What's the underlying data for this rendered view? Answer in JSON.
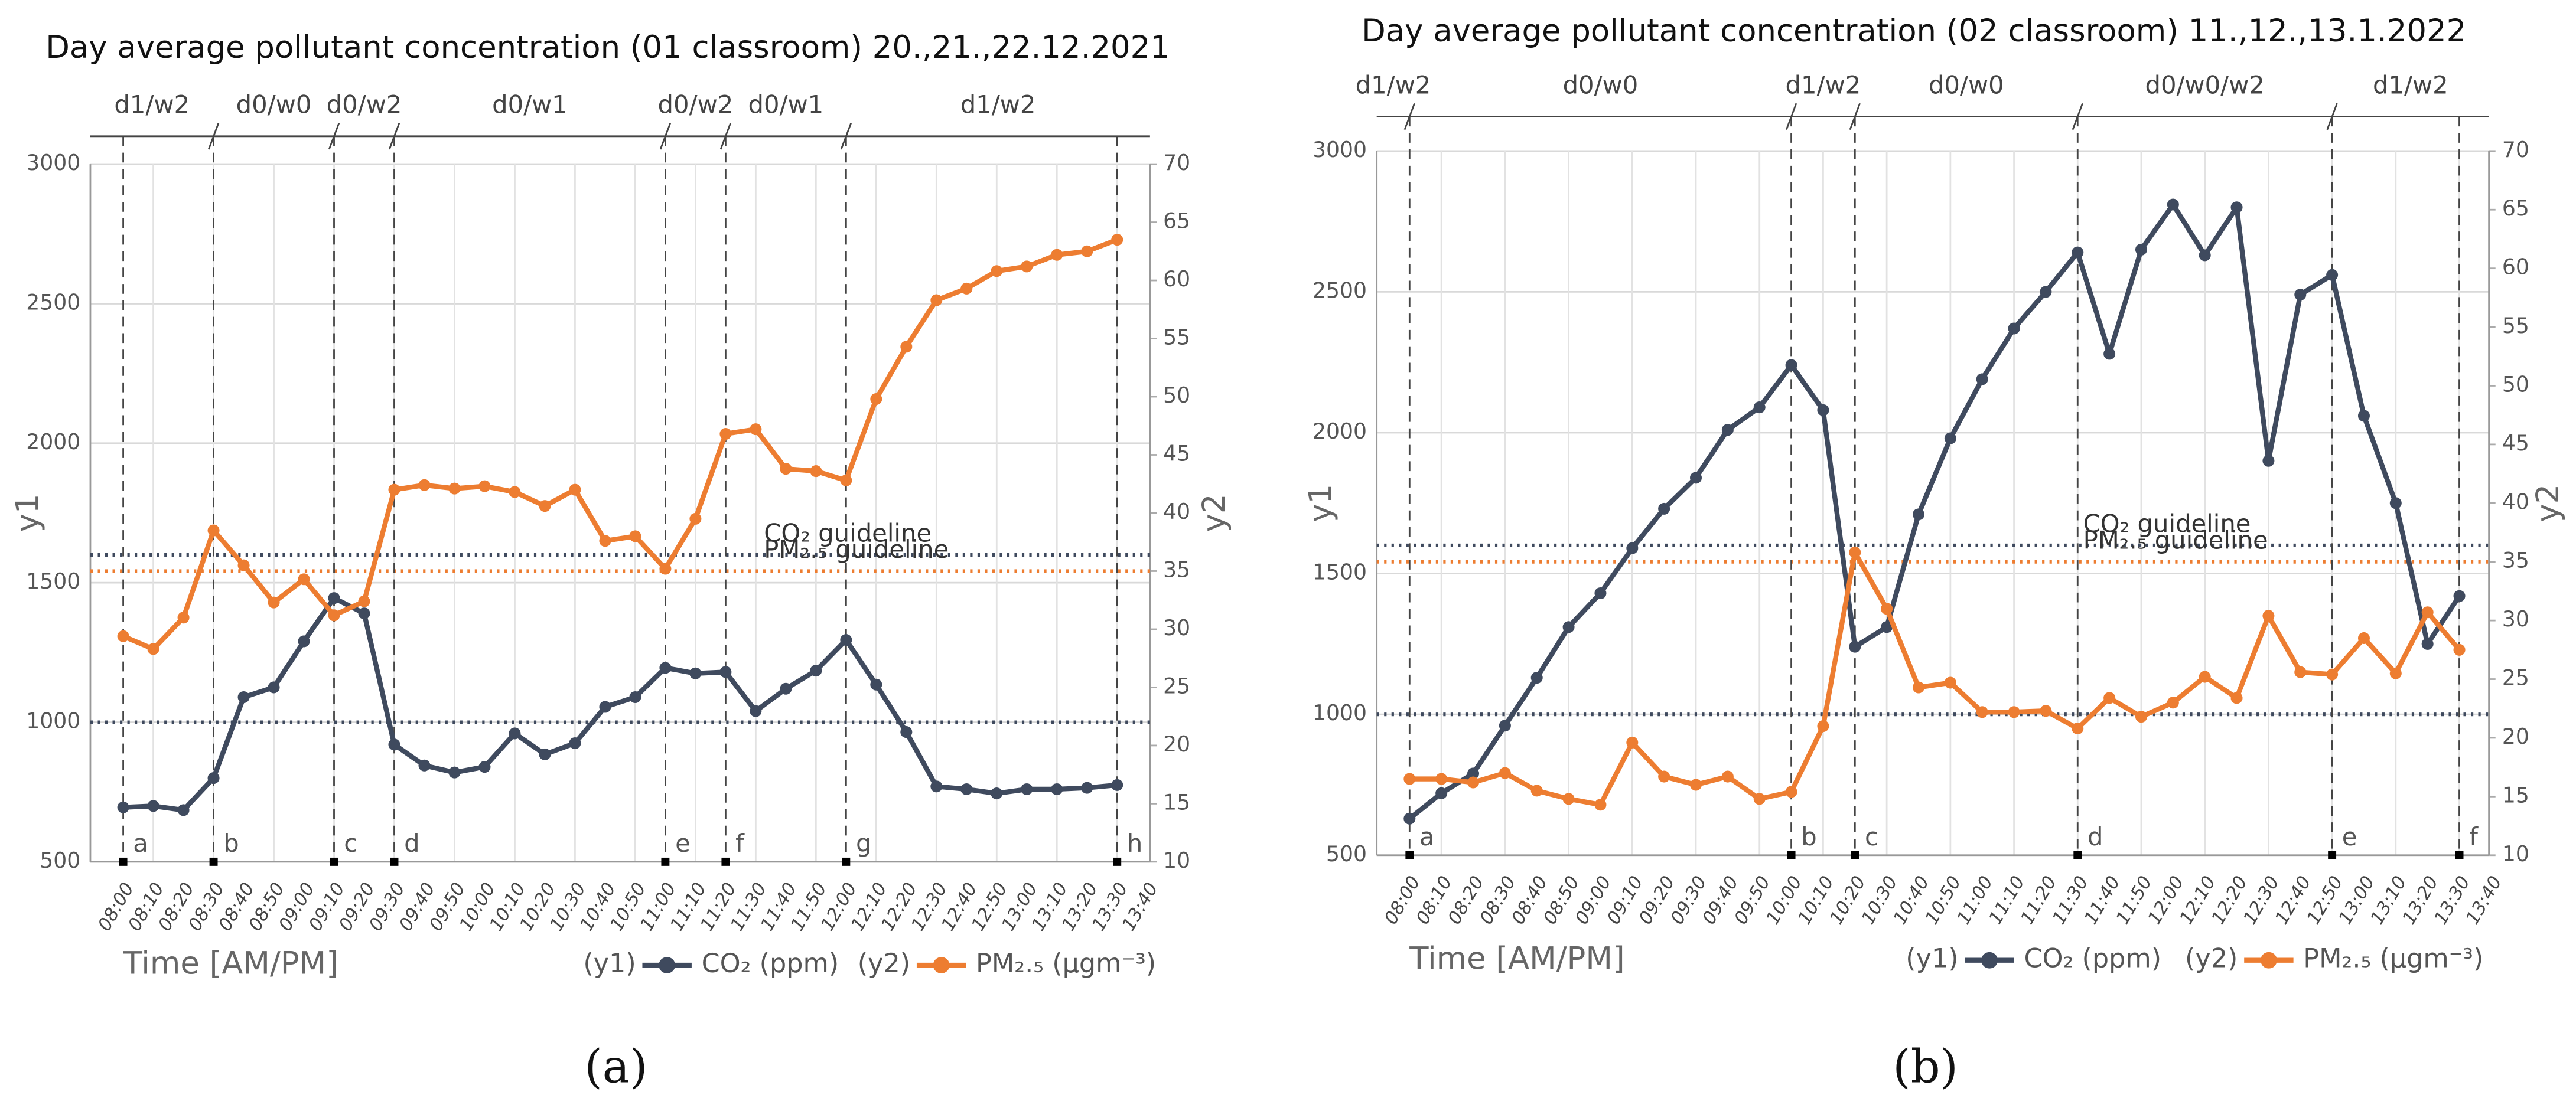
{
  "chart_data": [
    {
      "type": "line",
      "title": "Day average pollutant concentration (01 classroom)  20.,21.,22.12.2021",
      "x_label": "Time [AM/PM]",
      "y_label": "y1",
      "y2_label": "y2",
      "caption": "(a)",
      "categories": [
        "08:00",
        "08:10",
        "08:20",
        "08:30",
        "08:40",
        "08:50",
        "09:00",
        "09:10",
        "09:20",
        "09:30",
        "09:40",
        "09:50",
        "10:00",
        "10:10",
        "10:20",
        "10:30",
        "10:40",
        "10:50",
        "11:00",
        "11:10",
        "11:20",
        "11:30",
        "11:40",
        "11:50",
        "12:00",
        "12:10",
        "12:20",
        "12:30",
        "12:40",
        "12:50",
        "13:00",
        "13:10",
        "13:20",
        "13:30",
        "13:40"
      ],
      "series": [
        {
          "name": "CO₂ (ppm)",
          "legend_prefix": "(y1)",
          "color": "#3f4a5e",
          "axis": "y1",
          "values": [
            695,
            700,
            685,
            800,
            1090,
            1125,
            1290,
            1445,
            1390,
            920,
            845,
            820,
            840,
            960,
            885,
            925,
            1055,
            1090,
            1195,
            1175,
            1180,
            1040,
            1120,
            1185,
            1295,
            1135,
            965,
            770,
            760,
            745,
            760,
            760,
            765,
            775,
            null
          ]
        },
        {
          "name": "PM₂.₅ (µgm⁻³)",
          "legend_prefix": "(y2)",
          "color": "#ed7d31",
          "axis": "y2",
          "values": [
            29.4,
            28.3,
            31,
            38.5,
            35.5,
            32.3,
            34.3,
            31.2,
            32.4,
            42,
            42.4,
            42.1,
            42.3,
            41.8,
            40.6,
            42,
            37.6,
            38,
            35.2,
            39.5,
            46.8,
            47.2,
            43.8,
            43.6,
            42.8,
            49.8,
            54.3,
            58.3,
            59.3,
            60.8,
            61.2,
            62.2,
            62.5,
            63.5,
            null
          ]
        }
      ],
      "ylim": [
        500,
        3000
      ],
      "yticks": [
        500,
        1000,
        1500,
        2000,
        2500,
        3000
      ],
      "y2lim": [
        10,
        70
      ],
      "y2ticks": [
        10,
        15,
        20,
        25,
        30,
        35,
        40,
        45,
        50,
        55,
        60,
        65,
        70
      ],
      "grid": true,
      "guidelines": [
        {
          "label": "CO₂ guideline",
          "color": "#3f4a5e",
          "axis": "y1",
          "values": [
            1000,
            1600
          ]
        },
        {
          "label": "PM₂.₅ guideline",
          "color": "#ed7d31",
          "axis": "y2",
          "values": [
            35
          ]
        }
      ],
      "markers": [
        {
          "label": "a",
          "category": "08:00",
          "break": false
        },
        {
          "label": "b",
          "category": "08:30",
          "break": true
        },
        {
          "label": "c",
          "category": "09:10",
          "break": true
        },
        {
          "label": "d",
          "category": "09:30",
          "break": true
        },
        {
          "label": "e",
          "category": "11:00",
          "break": true
        },
        {
          "label": "f",
          "category": "11:20",
          "break": true
        },
        {
          "label": "g",
          "category": "12:00",
          "break": true
        },
        {
          "label": "h",
          "category": "13:30",
          "break": false
        }
      ],
      "phases": [
        "d1/w2",
        "d0/w0",
        "d0/w2",
        "d0/w1",
        "d0/w2",
        "d0/w1",
        "d1/w2"
      ]
    },
    {
      "type": "line",
      "title": "Day average pollutant concentration (02 classroom)  11.,12.,13.1.2022",
      "x_label": "Time [AM/PM]",
      "y_label": "y1",
      "y2_label": "y2",
      "caption": "(b)",
      "categories": [
        "08:00",
        "08:10",
        "08:20",
        "08:30",
        "08:40",
        "08:50",
        "09:00",
        "09:10",
        "09:20",
        "09:30",
        "09:40",
        "09:50",
        "10:00",
        "10:10",
        "10:20",
        "10:30",
        "10:40",
        "10:50",
        "11:00",
        "11:10",
        "11:20",
        "11:30",
        "11:40",
        "11:50",
        "12:00",
        "12:10",
        "12:20",
        "12:30",
        "12:40",
        "12:50",
        "13:00",
        "13:10",
        "13:20",
        "13:30",
        "13:40"
      ],
      "series": [
        {
          "name": "CO₂ (ppm)",
          "legend_prefix": "(y1)",
          "color": "#3f4a5e",
          "axis": "y1",
          "values": [
            630,
            720,
            790,
            960,
            1130,
            1310,
            1430,
            1590,
            1730,
            1840,
            2010,
            2090,
            2240,
            2080,
            1240,
            1310,
            1710,
            1980,
            2190,
            2370,
            2500,
            2640,
            2280,
            2650,
            2810,
            2630,
            2800,
            1900,
            2490,
            2560,
            2060,
            1750,
            1250,
            1420,
            null
          ]
        },
        {
          "name": "PM₂.₅ (µgm⁻³)",
          "legend_prefix": "(y2)",
          "color": "#ed7d31",
          "axis": "y2",
          "values": [
            16.5,
            16.5,
            16.2,
            17,
            15.5,
            14.8,
            14.3,
            19.6,
            16.7,
            16,
            16.7,
            14.8,
            15.4,
            21,
            35.8,
            31,
            24.3,
            24.7,
            22.2,
            22.2,
            22.3,
            20.8,
            23.4,
            21.8,
            23,
            25.2,
            23.4,
            30.4,
            25.6,
            25.4,
            28.5,
            25.5,
            30.7,
            27.5,
            null
          ]
        }
      ],
      "ylim": [
        500,
        3000
      ],
      "yticks": [
        500,
        1000,
        1500,
        2000,
        2500,
        3000
      ],
      "y2lim": [
        10,
        70
      ],
      "y2ticks": [
        10,
        15,
        20,
        25,
        30,
        35,
        40,
        45,
        50,
        55,
        60,
        65,
        70
      ],
      "grid": true,
      "guidelines": [
        {
          "label": "CO₂ guideline",
          "color": "#3f4a5e",
          "axis": "y1",
          "values": [
            1000,
            1600
          ]
        },
        {
          "label": "PM₂.₅ guideline",
          "color": "#ed7d31",
          "axis": "y2",
          "values": [
            35
          ]
        }
      ],
      "markers": [
        {
          "label": "a",
          "category": "08:00",
          "break": true
        },
        {
          "label": "b",
          "category": "10:00",
          "break": true
        },
        {
          "label": "c",
          "category": "10:20",
          "break": true
        },
        {
          "label": "d",
          "category": "11:30",
          "break": true
        },
        {
          "label": "e",
          "category": "12:50",
          "break": true
        },
        {
          "label": "f",
          "category": "13:30",
          "break": false
        }
      ],
      "phases": [
        "d1/w2",
        "d0/w0",
        "d1/w2",
        "d0/w0",
        "d0/w0/w2",
        "d1/w2"
      ]
    }
  ]
}
